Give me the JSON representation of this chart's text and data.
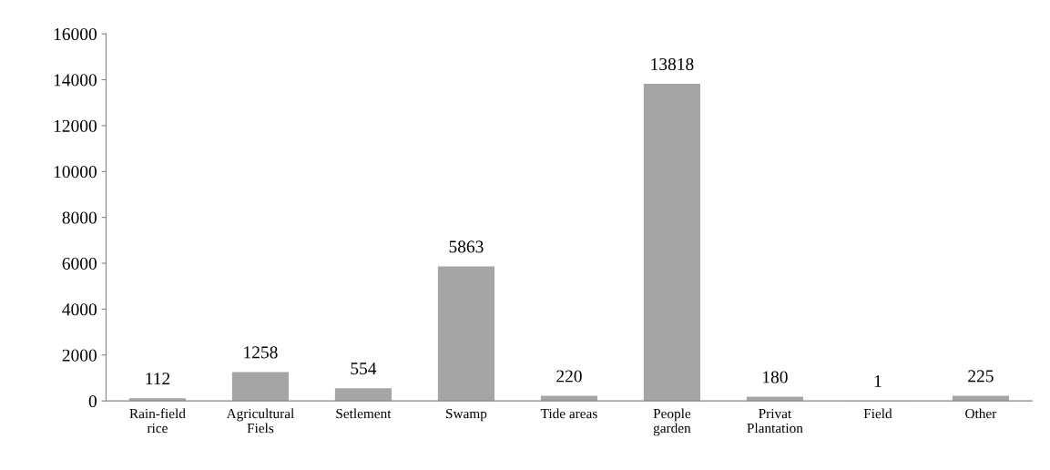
{
  "chart_data": {
    "type": "bar",
    "categories": [
      "Rain-field\nrice",
      "Agricultural\nFiels",
      "Setlement",
      "Swamp",
      "Tide areas",
      "People\ngarden",
      "Privat\nPlantation",
      "Field",
      "Other"
    ],
    "values": [
      112,
      1258,
      554,
      5863,
      220,
      13818,
      180,
      1,
      225
    ],
    "color": "#a5a5a5",
    "ylim": [
      0,
      16000
    ],
    "yticks": [
      0,
      2000,
      4000,
      6000,
      8000,
      10000,
      12000,
      14000,
      16000
    ],
    "data_labels": true,
    "grid": false
  }
}
